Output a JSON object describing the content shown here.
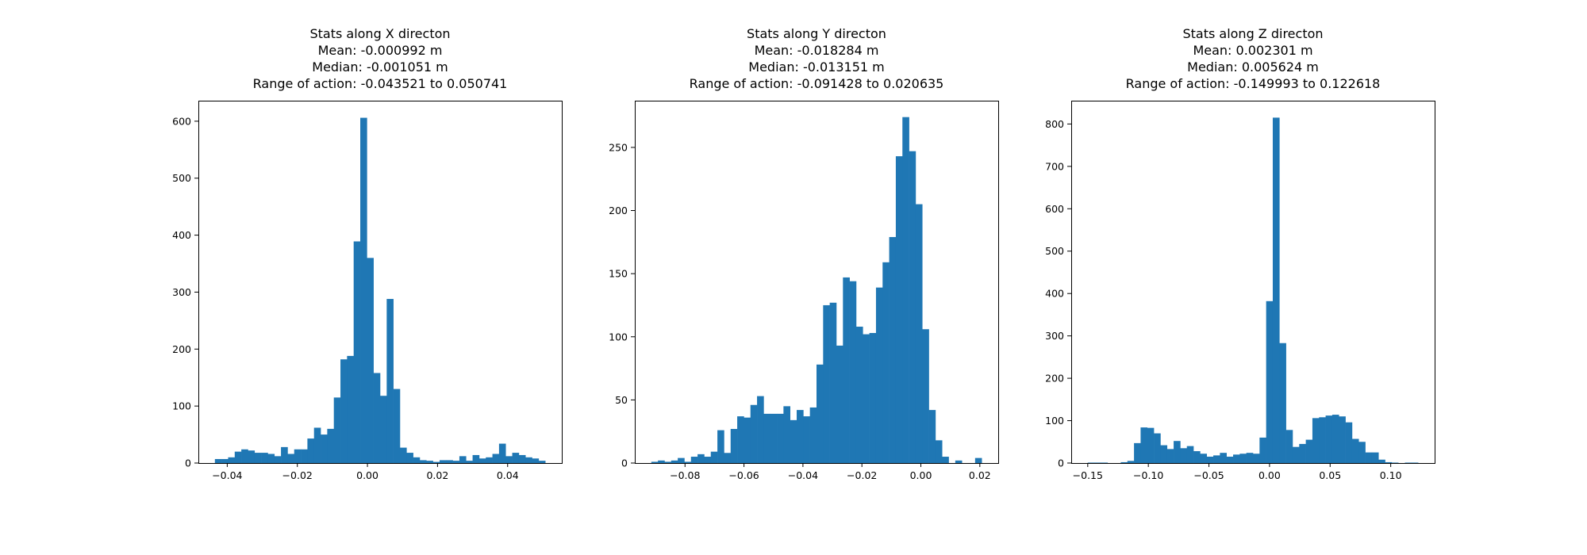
{
  "figure": {
    "background": "#ffffff",
    "bar_color": "#1f77b4"
  },
  "chart_data": [
    {
      "type": "bar",
      "histogram": true,
      "title_lines": [
        "Stats along X directon",
        "Mean: -0.000992 m",
        "Median: -0.001051 m",
        "Range of action: -0.043521 to 0.050741"
      ],
      "xlabel": "",
      "ylabel": "",
      "xlim": [
        -0.048235,
        0.055454
      ],
      "ylim": [
        0,
        636
      ],
      "xticks": [
        -0.04,
        -0.02,
        0.0,
        0.02,
        0.04
      ],
      "xtick_labels": [
        "−0.04",
        "−0.02",
        "0.00",
        "0.02",
        "0.04"
      ],
      "yticks": [
        0,
        100,
        200,
        300,
        400,
        500,
        600
      ],
      "ytick_labels": [
        "0",
        "100",
        "200",
        "300",
        "400",
        "500",
        "600"
      ],
      "bin_start": -0.043521,
      "bin_end": 0.050741,
      "values": [
        7,
        7,
        10,
        20,
        24,
        22,
        18,
        18,
        16,
        12,
        28,
        16,
        24,
        24,
        43,
        62,
        50,
        60,
        115,
        182,
        188,
        389,
        606,
        360,
        158,
        118,
        288,
        130,
        27,
        18,
        10,
        5,
        4,
        2,
        5,
        5,
        4,
        12,
        4,
        14,
        8,
        10,
        16,
        34,
        12,
        18,
        14,
        10,
        8,
        4
      ]
    },
    {
      "type": "bar",
      "histogram": true,
      "title_lines": [
        "Stats along Y directon",
        "Mean: -0.018284 m",
        "Median: -0.013151 m",
        "Range of action: -0.091428 to 0.020635"
      ],
      "xlabel": "",
      "ylabel": "",
      "xlim": [
        -0.097031,
        0.026238
      ],
      "ylim": [
        0,
        287
      ],
      "xticks": [
        -0.08,
        -0.06,
        -0.04,
        -0.02,
        0.0,
        0.02
      ],
      "xtick_labels": [
        "−0.08",
        "−0.06",
        "−0.04",
        "−0.02",
        "0.00",
        "0.02"
      ],
      "yticks": [
        0,
        50,
        100,
        150,
        200,
        250
      ],
      "ytick_labels": [
        "0",
        "50",
        "100",
        "150",
        "200",
        "250"
      ],
      "bin_start": -0.091428,
      "bin_end": 0.020635,
      "values": [
        1,
        2,
        1,
        2,
        4,
        1,
        5,
        7,
        5,
        9,
        26,
        8,
        27,
        37,
        36,
        46,
        53,
        39,
        39,
        39,
        45,
        34,
        42,
        37,
        44,
        78,
        125,
        127,
        93,
        147,
        144,
        108,
        102,
        103,
        139,
        159,
        179,
        243,
        274,
        247,
        205,
        106,
        42,
        18,
        5,
        0,
        2,
        0,
        0,
        4
      ]
    },
    {
      "type": "bar",
      "histogram": true,
      "title_lines": [
        "Stats along Z directon",
        "Mean: 0.002301 m",
        "Median: 0.005624 m",
        "Range of action: -0.149993 to 0.122618"
      ],
      "xlabel": "",
      "ylabel": "",
      "xlim": [
        -0.163624,
        0.136249
      ],
      "ylim": [
        0,
        855
      ],
      "xticks": [
        -0.15,
        -0.1,
        -0.05,
        0.0,
        0.05,
        0.1
      ],
      "xtick_labels": [
        "−0.15",
        "−0.10",
        "−0.05",
        "0.00",
        "0.05",
        "0.10"
      ],
      "yticks": [
        0,
        100,
        200,
        300,
        400,
        500,
        600,
        700,
        800
      ],
      "ytick_labels": [
        "0",
        "100",
        "200",
        "300",
        "400",
        "500",
        "600",
        "700",
        "800"
      ],
      "bin_start": -0.149993,
      "bin_end": 0.122618,
      "values": [
        1,
        1,
        1,
        0,
        0,
        2,
        5,
        47,
        84,
        83,
        70,
        42,
        33,
        52,
        35,
        40,
        28,
        22,
        15,
        18,
        24,
        15,
        20,
        22,
        24,
        22,
        60,
        382,
        815,
        283,
        78,
        38,
        45,
        55,
        106,
        108,
        112,
        114,
        110,
        96,
        57,
        50,
        25,
        25,
        8,
        2,
        1,
        0,
        1,
        1
      ]
    }
  ]
}
